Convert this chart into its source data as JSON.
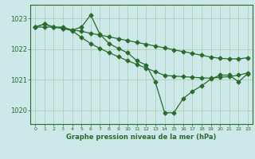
{
  "title": "Graphe pression niveau de la mer (hPa)",
  "bg_color": "#cce8e8",
  "line_color": "#2d6b2d",
  "grid_color": "#a8cca8",
  "ylim": [
    1019.55,
    1023.45
  ],
  "xlim": [
    -0.5,
    23.5
  ],
  "yticks": [
    1020,
    1021,
    1022,
    1023
  ],
  "xticks": [
    0,
    1,
    2,
    3,
    4,
    5,
    6,
    7,
    8,
    9,
    10,
    11,
    12,
    13,
    14,
    15,
    16,
    17,
    18,
    19,
    20,
    21,
    22,
    23
  ],
  "s1_x": [
    0,
    1,
    2,
    3,
    4,
    5,
    6,
    7,
    8,
    9,
    10,
    11,
    12,
    13,
    14,
    15,
    16,
    17,
    18,
    19,
    20,
    21,
    22,
    23
  ],
  "s1_y": [
    1022.72,
    1022.72,
    1022.72,
    1022.68,
    1022.63,
    1022.58,
    1022.52,
    1022.46,
    1022.4,
    1022.34,
    1022.28,
    1022.22,
    1022.16,
    1022.1,
    1022.04,
    1021.98,
    1021.92,
    1021.86,
    1021.8,
    1021.74,
    1021.7,
    1021.68,
    1021.68,
    1021.72
  ],
  "s2_x": [
    0,
    1,
    2,
    3,
    4,
    5,
    6,
    7,
    8,
    9,
    10,
    11,
    12,
    13,
    14,
    15,
    16,
    17,
    18,
    19,
    20,
    21,
    22,
    23
  ],
  "s2_y": [
    1022.72,
    1022.82,
    1022.72,
    1022.68,
    1022.6,
    1022.38,
    1022.18,
    1022.02,
    1021.88,
    1021.75,
    1021.62,
    1021.5,
    1021.38,
    1021.26,
    1021.14,
    1021.12,
    1021.1,
    1021.08,
    1021.06,
    1021.05,
    1021.08,
    1021.1,
    1021.15,
    1021.22
  ],
  "s3_x": [
    0,
    1,
    2,
    3,
    4,
    5,
    6,
    7,
    8,
    9,
    10,
    11,
    12,
    13,
    14,
    15,
    16,
    17,
    18,
    19,
    20,
    21,
    22,
    23
  ],
  "s3_y": [
    1022.72,
    1022.82,
    1022.72,
    1022.72,
    1022.62,
    1022.72,
    1023.12,
    1022.48,
    1022.18,
    1022.02,
    1021.88,
    1021.62,
    1021.48,
    1020.92,
    1019.92,
    1019.92,
    1020.38,
    1020.62,
    1020.8,
    1021.02,
    1021.15,
    1021.15,
    1020.93,
    1021.2
  ]
}
